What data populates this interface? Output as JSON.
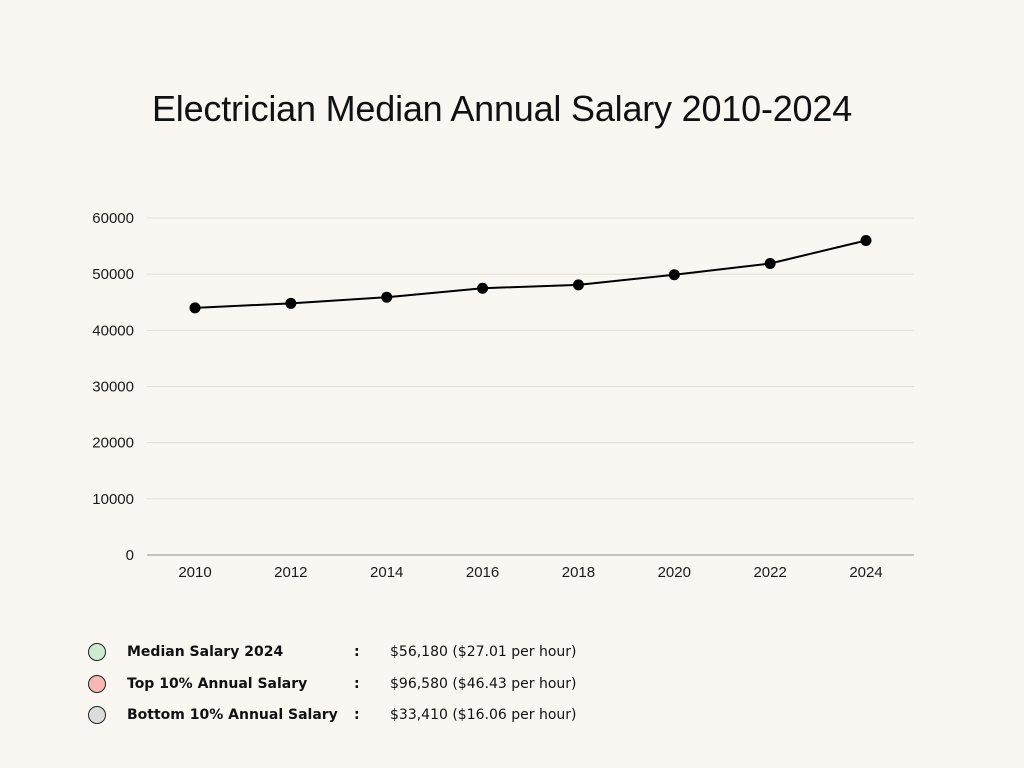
{
  "chart_data": {
    "type": "line",
    "title": "Electrician Median Annual Salary 2010-2024",
    "xlabel": "",
    "ylabel": "",
    "x": [
      "2010",
      "2012",
      "2014",
      "2016",
      "2018",
      "2020",
      "2022",
      "2024"
    ],
    "series": [
      {
        "values": [
          44000,
          44800,
          45900,
          47500,
          48100,
          49900,
          51900,
          56000
        ],
        "color": "#000000"
      }
    ],
    "ylim": [
      0,
      60000
    ],
    "yticks": [
      "0",
      "10000",
      "20000",
      "30000",
      "40000",
      "50000",
      "60000"
    ],
    "grid": true,
    "line_color": "#000000"
  },
  "legend": {
    "items": [
      {
        "label": "Median Salary 2024",
        "separator": ":",
        "value": "$56,180 ($27.01 per hour)",
        "color": "#cdebd3"
      },
      {
        "label": "Top 10% Annual Salary",
        "separator": ":",
        "value": "$96,580 ($46.43 per hour)",
        "color": "#f6b9b4"
      },
      {
        "label": "Bottom 10% Annual Salary",
        "separator": ":",
        "value": "$33,410 ($16.06 per hour)",
        "color": "#dcdcdc"
      }
    ]
  },
  "colors": {
    "background": "#faf7f2",
    "grid": "#e2ddd6",
    "axis": "#a9a39b"
  }
}
